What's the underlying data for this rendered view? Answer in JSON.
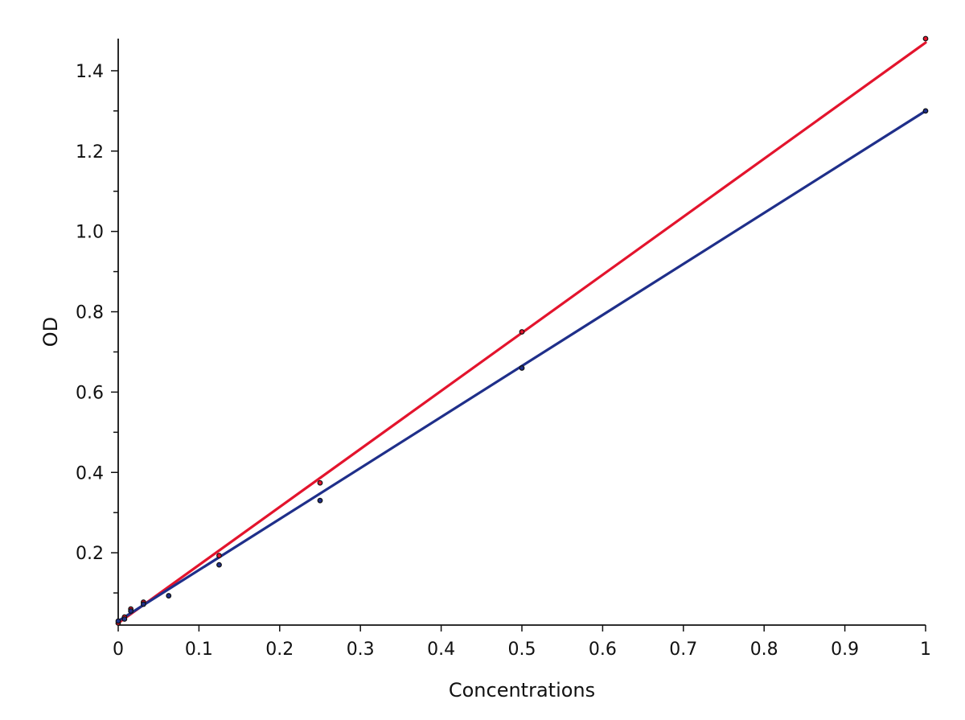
{
  "chart_data": {
    "type": "scatter",
    "title": "",
    "xlabel": "Concentrations",
    "ylabel": "OD",
    "xlim": [
      0,
      1
    ],
    "ylim": [
      0.02,
      1.48
    ],
    "grid": false,
    "legend": "none",
    "x_ticks": [
      0,
      0.1,
      0.2,
      0.3,
      0.4,
      0.5,
      0.6,
      0.7,
      0.8,
      0.9,
      1
    ],
    "x_tick_labels": [
      "0",
      "0.1",
      "0.2",
      "0.3",
      "0.4",
      "0.5",
      "0.6",
      "0.7",
      "0.8",
      "0.9",
      "1"
    ],
    "y_ticks": [
      0.2,
      0.4,
      0.6,
      0.8,
      1.0,
      1.2,
      1.4
    ],
    "y_tick_labels": [
      "0.2",
      "0.4",
      "0.6",
      "0.8",
      "1.0",
      "1.2",
      "1.4"
    ],
    "y_minor_ticks": [
      0.1,
      0.3,
      0.5,
      0.7,
      0.9,
      1.1,
      1.3
    ],
    "series": [
      {
        "color": "#e3142d",
        "points": [
          {
            "x": 0,
            "y": 0.025
          },
          {
            "x": 0.0078,
            "y": 0.04
          },
          {
            "x": 0.0156,
            "y": 0.06
          },
          {
            "x": 0.03125,
            "y": 0.077
          },
          {
            "x": 0.125,
            "y": 0.193
          },
          {
            "x": 0.25,
            "y": 0.374
          },
          {
            "x": 0.5,
            "y": 0.75
          },
          {
            "x": 1,
            "y": 1.48
          }
        ],
        "fit": {
          "x": [
            0,
            1
          ],
          "y": [
            0.025,
            1.47
          ]
        }
      },
      {
        "color": "#1f2f8a",
        "points": [
          {
            "x": 0,
            "y": 0.03
          },
          {
            "x": 0.0078,
            "y": 0.035
          },
          {
            "x": 0.0156,
            "y": 0.055
          },
          {
            "x": 0.03125,
            "y": 0.072
          },
          {
            "x": 0.0625,
            "y": 0.093
          },
          {
            "x": 0.125,
            "y": 0.17
          },
          {
            "x": 0.25,
            "y": 0.33
          },
          {
            "x": 0.5,
            "y": 0.66
          },
          {
            "x": 1,
            "y": 1.3
          }
        ],
        "fit": {
          "x": [
            0,
            1
          ],
          "y": [
            0.03,
            1.3
          ]
        }
      }
    ]
  }
}
